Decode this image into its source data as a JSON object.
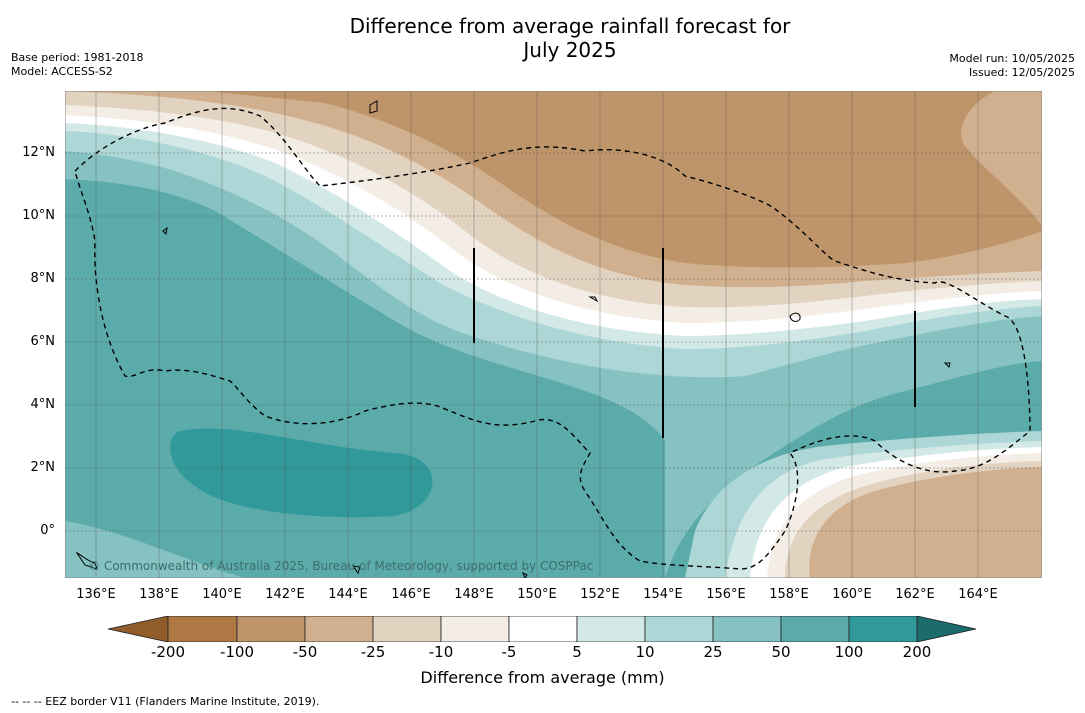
{
  "title_line1": "Difference from average rainfall forecast for",
  "title_line2": "July 2025",
  "base_period": "Base period: 1981-2018",
  "model": "Model: ACCESS-S2",
  "model_run": "Model run: 10/05/2025",
  "issued": "Issued: 12/05/2025",
  "lat_labels": [
    "12°N",
    "10°N",
    "8°N",
    "6°N",
    "4°N",
    "2°N",
    "0°"
  ],
  "lon_labels": [
    "136°E",
    "138°E",
    "140°E",
    "142°E",
    "144°E",
    "146°E",
    "148°E",
    "150°E",
    "152°E",
    "154°E",
    "156°E",
    "158°E",
    "160°E",
    "162°E",
    "164°E"
  ],
  "colorbar": {
    "ticks": [
      "-200",
      "-100",
      "-50",
      "-25",
      "-10",
      "-5",
      "5",
      "10",
      "25",
      "50",
      "100",
      "200"
    ],
    "colors": [
      "#ad7843",
      "#be946a",
      "#d0b08e",
      "#e2d2c0",
      "#f3ede5",
      "#ffffff",
      "#d3e9e7",
      "#acd7d6",
      "#85c2c1",
      "#5cabab",
      "#31999a"
    ],
    "under_color": "#8f5c2a",
    "over_color": "#1b6b6c",
    "title": "Difference from average (mm)"
  },
  "copyright": "© Commonwealth of Australia 2025, Bureau of Meteorology, supported by COSPPac",
  "footer": "--  --  -- EEZ border V11 (Flanders Marine Institute, 2019)."
}
